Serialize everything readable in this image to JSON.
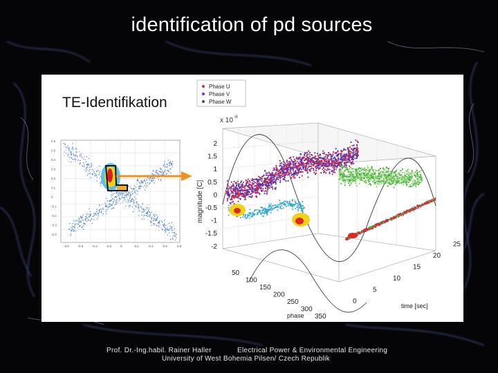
{
  "slide": {
    "title": "identification of pd sources"
  },
  "figure": {
    "heading": "TE-Identifikation",
    "legend": [
      "Phase U",
      "Phase V",
      "Phase W"
    ],
    "legend_colors": [
      "#d8263a",
      "#8b2ea8",
      "#3a3fb0"
    ],
    "exponent_label": "x 10",
    "exponent_power": "-8",
    "z_axis_label": "magnitude [C]",
    "z_ticks": [
      "2",
      "1.5",
      "1",
      "0.5",
      "0",
      "-0.5",
      "-1",
      "-1.5",
      "-2"
    ],
    "phase_axis_label": "phase",
    "phase_ticks": [
      "50",
      "100",
      "150",
      "200",
      "250",
      "300",
      "350"
    ],
    "time_axis_label": "time [sec]",
    "time_ticks": [
      "0",
      "5",
      "10",
      "15",
      "20",
      "25"
    ],
    "scatter_x_ticks": [
      "-0.8",
      "-0.6",
      "-0.4",
      "-0.2",
      "0",
      "0.2",
      "0.4",
      "0.6",
      "0.8"
    ],
    "scatter_y_ticks": [
      "0.6",
      "0.5",
      "0.4",
      "0.3",
      "0.2",
      "0.1",
      "0",
      "-0.1",
      "-0.2",
      "-0.3",
      "-0.4"
    ]
  },
  "footer": {
    "author": "Prof. Dr.-Ing.habil. Rainer Haller",
    "department": "Electrical Power & Environmental Engineering",
    "university": "University of West Bohemia Pilsen/ Czech Republik"
  }
}
